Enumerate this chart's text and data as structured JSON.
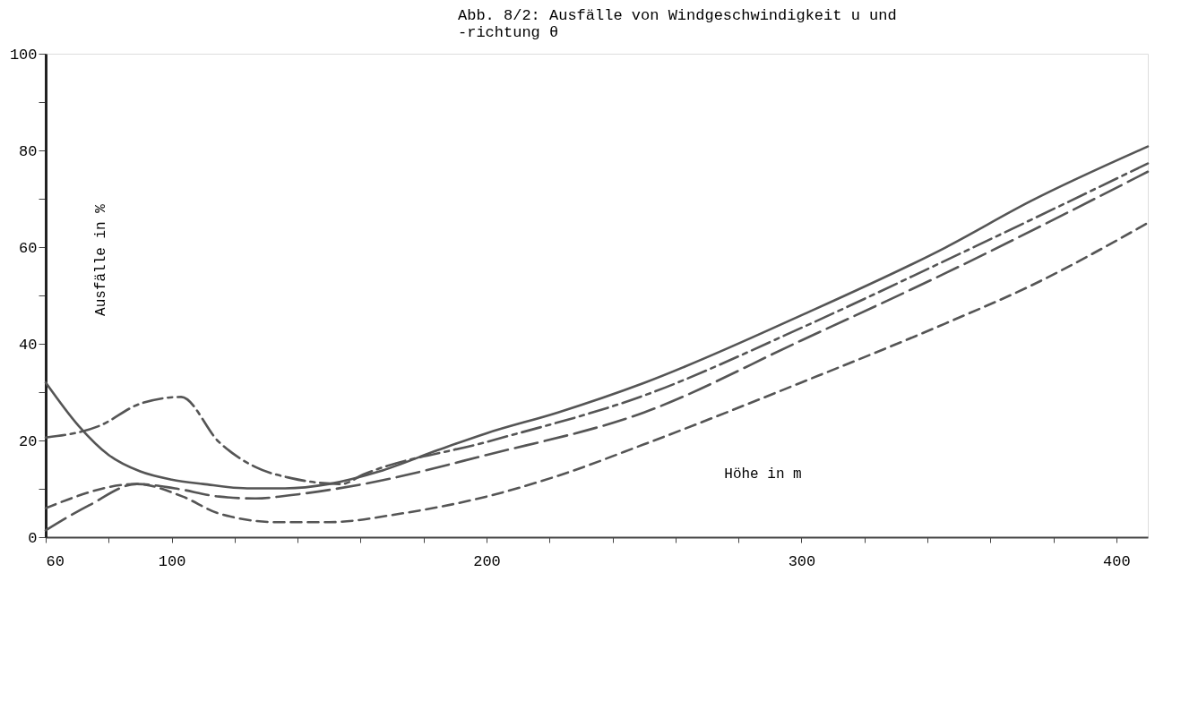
{
  "chart_data": {
    "type": "line",
    "title": "Abb. 8/2:  Ausfälle von Windgeschwindigkeit u und\n           -richtung θ",
    "xlabel": "Höhe in m",
    "ylabel": "Ausfälle in %",
    "xlim": [
      60,
      410
    ],
    "ylim": [
      0,
      100
    ],
    "xticks": [
      60,
      {
        "value": 80,
        "label": null
      },
      100,
      {
        "value": 120,
        "label": null
      },
      {
        "value": 140,
        "label": null
      },
      {
        "value": 160,
        "label": null
      },
      {
        "value": 180,
        "label": null
      },
      200,
      {
        "value": 220,
        "label": null
      },
      {
        "value": 240,
        "label": null
      },
      {
        "value": 260,
        "label": null
      },
      {
        "value": 280,
        "label": null
      },
      300,
      {
        "value": 320,
        "label": null
      },
      {
        "value": 340,
        "label": null
      },
      {
        "value": 360,
        "label": null
      },
      {
        "value": 380,
        "label": null
      },
      400
    ],
    "yticks": [
      0,
      {
        "value": 10,
        "label": null
      },
      20,
      {
        "value": 30,
        "label": null
      },
      40,
      {
        "value": 50,
        "label": null
      },
      60,
      {
        "value": 70,
        "label": null
      },
      80,
      {
        "value": 90,
        "label": null
      },
      100
    ],
    "grid": false,
    "marker": "none",
    "series": [
      {
        "color": "#555555",
        "line_style": "solid",
        "x": [
          60,
          70.5,
          80,
          90,
          100,
          110,
          124,
          136,
          150,
          166,
          184.5,
          200,
          222.7,
          250,
          300,
          345.7,
          372.8,
          410
        ],
        "values": [
          32,
          23,
          17,
          13.6,
          11.9,
          11,
          10.1,
          10.1,
          11,
          13.6,
          18,
          21.5,
          25.8,
          31.9,
          45.9,
          59.9,
          69.5,
          80.8
        ]
      },
      {
        "color": "#555555",
        "line_style": "dashed",
        "x": [
          60,
          77,
          90,
          103,
          115,
          126.6,
          138,
          154,
          161,
          200,
          250,
          300,
          345.7,
          410
        ],
        "values": [
          20.6,
          23,
          27.6,
          29,
          19.7,
          14.5,
          12.2,
          11,
          13,
          19.7,
          29.3,
          43.3,
          57.2,
          77.3
        ]
      },
      {
        "color": "#555555",
        "line_style": "dashed",
        "x": [
          60,
          73.8,
          89,
          101,
          115,
          126.6,
          138,
          161,
          200,
          250,
          300,
          345.7,
          410
        ],
        "values": [
          1.4,
          6.6,
          11,
          10.1,
          8.4,
          8,
          8.7,
          11,
          17,
          25.8,
          40.7,
          54.6,
          75.6
        ]
      },
      {
        "color": "#555555",
        "line_style": "dashed",
        "x": [
          60,
          89,
          103.5,
          115,
          133.6,
          150,
          173,
          200,
          222.7,
          250,
          300,
          345.7,
          372.8,
          410
        ],
        "values": [
          6,
          11,
          8.4,
          4.9,
          3.1,
          3.1,
          4.9,
          8.4,
          12.7,
          19.2,
          32,
          44.2,
          52,
          65
        ]
      }
    ]
  }
}
